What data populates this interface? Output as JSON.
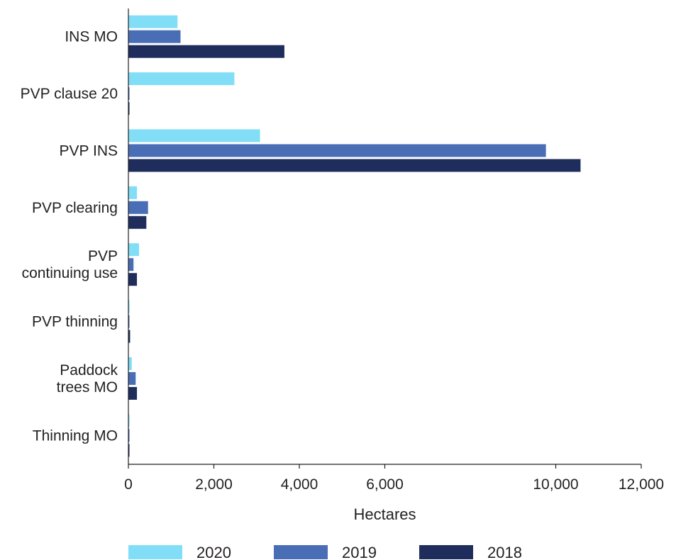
{
  "chart_data": {
    "type": "bar",
    "orientation": "horizontal",
    "title": "",
    "xlabel": "Hectares",
    "ylabel": "",
    "xlim": [
      0,
      12000
    ],
    "xticks": [
      0,
      2000,
      4000,
      6000,
      10000,
      12000
    ],
    "xtick_labels": [
      "0",
      "2,000",
      "4,000",
      "6,000",
      "10,000",
      "12,000"
    ],
    "grid": false,
    "legend_position": "bottom",
    "categories": [
      [
        "INS MO"
      ],
      [
        "PVP clause 20"
      ],
      [
        "PVP INS"
      ],
      [
        "PVP clearing"
      ],
      [
        "PVP",
        "continuing use"
      ],
      [
        "PVP thinning"
      ],
      [
        "Paddock",
        "trees MO"
      ],
      [
        "Thinning MO"
      ]
    ],
    "series": [
      {
        "name": "2020",
        "color": "#82def7",
        "values": [
          1150,
          2480,
          3080,
          200,
          250,
          5,
          80,
          5
        ]
      },
      {
        "name": "2019",
        "color": "#4a6eb5",
        "values": [
          1220,
          5,
          9770,
          460,
          120,
          5,
          170,
          5
        ]
      },
      {
        "name": "2018",
        "color": "#1f2d5d",
        "values": [
          3650,
          5,
          10580,
          420,
          200,
          40,
          200,
          5
        ]
      }
    ]
  }
}
